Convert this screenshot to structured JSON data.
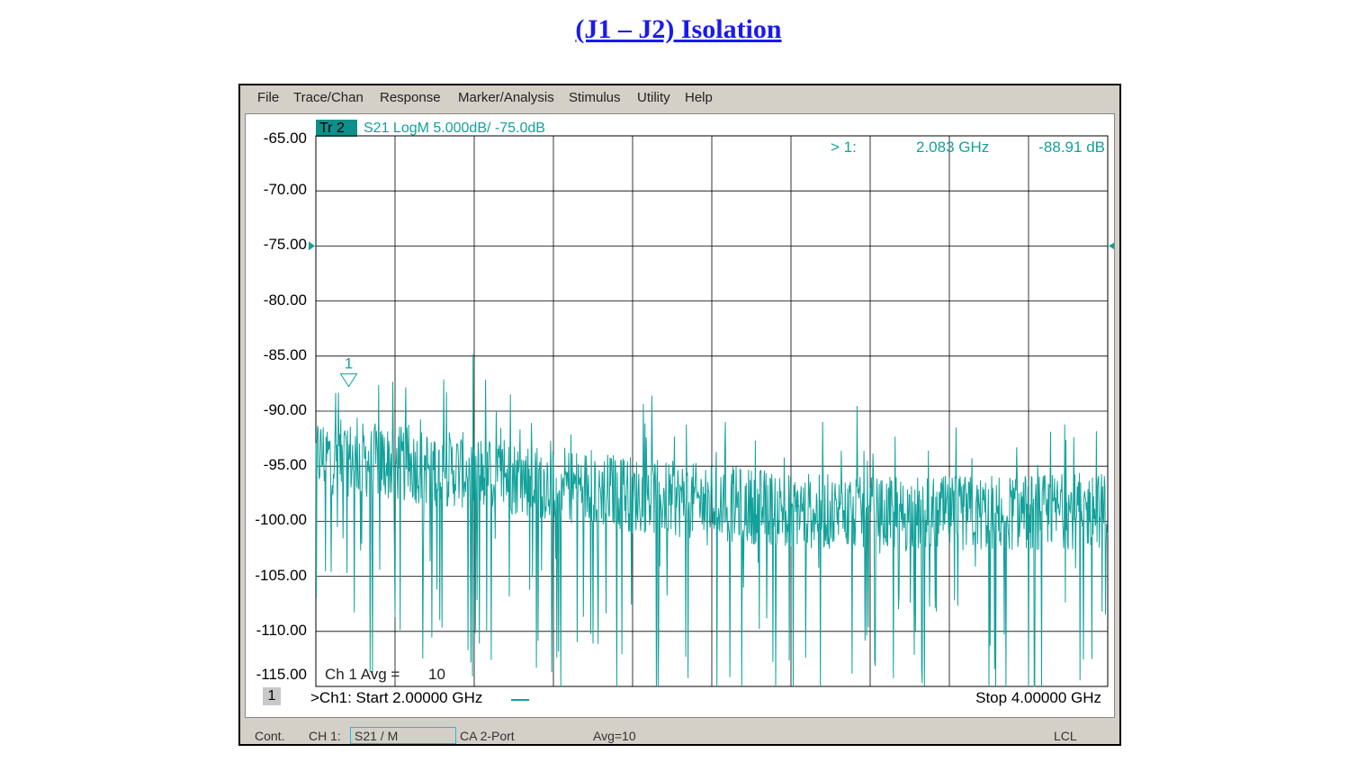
{
  "page_title": "(J1 – J2) Isolation",
  "menu": [
    "File",
    "Trace/Chan",
    "Response",
    "Marker/Analysis",
    "Stimulus",
    "Utility",
    "Help"
  ],
  "trace": {
    "tag": "Tr 2",
    "description": "S21 LogM 5.000dB/  -75.0dB",
    "color": "#12a19a"
  },
  "marker_readout": {
    "label": "> 1:",
    "frequency": "2.083 GHz",
    "value": "-88.91 dB"
  },
  "y_ticks": [
    "-65.00",
    "-70.00",
    "-75.00",
    "-80.00",
    "-85.00",
    "-90.00",
    "-95.00",
    "-100.00",
    "-105.00",
    "-110.00",
    "-115.00"
  ],
  "marker_number": "1",
  "avg_label": "Ch 1 Avg =",
  "avg_value": "10",
  "channel_number": "1",
  "start_label": ">Ch1: Start  2.00000 GHz",
  "stop_label": "Stop  4.00000 GHz",
  "status": {
    "cont": "Cont.",
    "ch": "CH 1:",
    "meas": "S21 / M",
    "cal": "CA 2-Port",
    "avg": "Avg=10",
    "lcl": "LCL"
  },
  "chart_data": {
    "type": "line",
    "x_range": [
      2.0,
      4.0
    ],
    "ylim": [
      -115,
      -65
    ],
    "y_ticks": [
      -65,
      -70,
      -75,
      -80,
      -85,
      -90,
      -95,
      -100,
      -105,
      -110,
      -115
    ],
    "reference_level": -75,
    "scale_per_div": 5,
    "x_unit": "GHz",
    "y_unit": "dB",
    "grid": true,
    "series": [
      {
        "color": "#12a19a",
        "noise_floor": [
          [
            2.0,
            -94
          ],
          [
            2.4,
            -95.5
          ],
          [
            2.9,
            -98
          ],
          [
            3.4,
            -99.5
          ],
          [
            4.0,
            -99
          ]
        ],
        "marker": {
          "x": 2.083,
          "y": -88.91
        }
      }
    ]
  }
}
